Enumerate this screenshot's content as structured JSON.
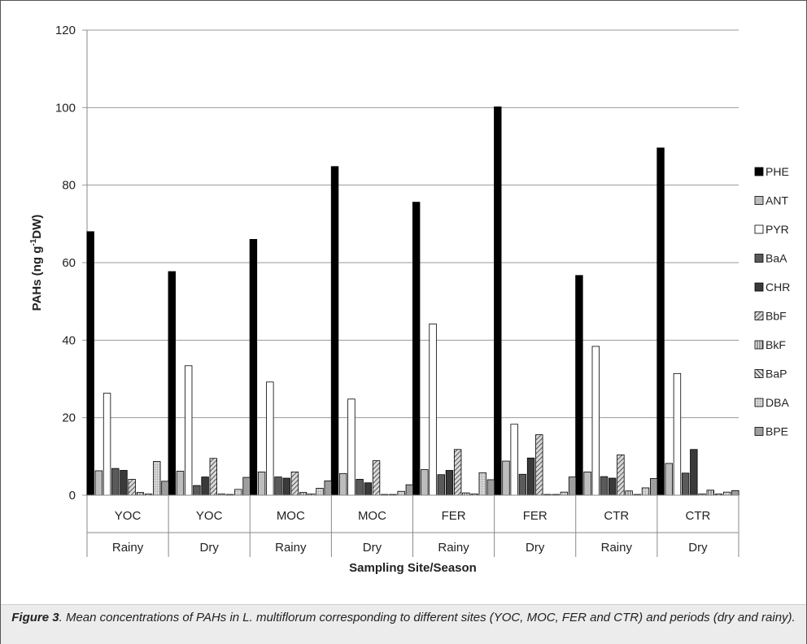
{
  "chart_data": {
    "type": "bar",
    "xlabel": "Sampling Site/Season",
    "ylabel_main": "PAHs (ng g",
    "ylabel_sup": "-1",
    "ylabel_tail": "DW)",
    "ylim": [
      0,
      120
    ],
    "yticks": [
      "0",
      "20",
      "40",
      "60",
      "80",
      "100",
      "120"
    ],
    "grid": true,
    "legend_position": "right",
    "categories": [
      {
        "site": "YOC",
        "season": "Rainy"
      },
      {
        "site": "YOC",
        "season": "Dry"
      },
      {
        "site": "MOC",
        "season": "Rainy"
      },
      {
        "site": "MOC",
        "season": "Dry"
      },
      {
        "site": "FER",
        "season": "Rainy"
      },
      {
        "site": "FER",
        "season": "Dry"
      },
      {
        "site": "CTR",
        "season": "Rainy"
      },
      {
        "site": "CTR",
        "season": "Dry"
      }
    ],
    "series": [
      {
        "name": "PHE",
        "color": "#000000",
        "pattern": "solid",
        "values": [
          68.0,
          57.7,
          66.0,
          84.8,
          75.6,
          100.2,
          56.7,
          89.6
        ]
      },
      {
        "name": "ANT",
        "color": "#bdbdbd",
        "pattern": "solid",
        "values": [
          6.3,
          6.2,
          6.0,
          5.6,
          6.6,
          8.8,
          6.0,
          8.2
        ]
      },
      {
        "name": "PYR",
        "color": "#ffffff",
        "pattern": "solid",
        "values": [
          26.3,
          33.4,
          29.2,
          24.8,
          44.2,
          18.3,
          38.4,
          31.4
        ]
      },
      {
        "name": "BaA",
        "color": "#5a5a5a",
        "pattern": "solid",
        "values": [
          6.9,
          2.5,
          4.7,
          4.1,
          5.3,
          5.4,
          4.8,
          5.7
        ]
      },
      {
        "name": "CHR",
        "color": "#3a3a3a",
        "pattern": "solid",
        "values": [
          6.4,
          4.7,
          4.4,
          3.2,
          6.4,
          9.6,
          4.4,
          11.8
        ]
      },
      {
        "name": "BbF",
        "color": "#8c8c8c",
        "pattern": "diag",
        "values": [
          4.1,
          9.5,
          6.0,
          8.9,
          11.8,
          15.6,
          10.4,
          0.3
        ]
      },
      {
        "name": "BkF",
        "color": "#9a9a9a",
        "pattern": "vert",
        "values": [
          0.7,
          0.3,
          0.7,
          0.2,
          0.6,
          0.2,
          1.1,
          1.3
        ]
      },
      {
        "name": "BaP",
        "color": "#6e6e6e",
        "pattern": "diag2",
        "values": [
          0.3,
          0.2,
          0.3,
          0.2,
          0.3,
          0.2,
          0.2,
          0.3
        ]
      },
      {
        "name": "DBA",
        "color": "#cfcfcf",
        "pattern": "dots",
        "values": [
          8.7,
          1.5,
          1.8,
          1.0,
          5.8,
          0.8,
          1.9,
          0.8
        ]
      },
      {
        "name": "BPE",
        "color": "#9e9e9e",
        "pattern": "solid",
        "values": [
          3.6,
          4.6,
          3.7,
          2.7,
          4.0,
          4.7,
          4.3,
          1.2
        ]
      }
    ]
  },
  "caption": {
    "label": "Figure 3",
    "text": ". Mean concentrations of PAHs in L. multiflorum corresponding to different sites (YOC, MOC, FER and CTR) and periods (dry and rainy)."
  }
}
